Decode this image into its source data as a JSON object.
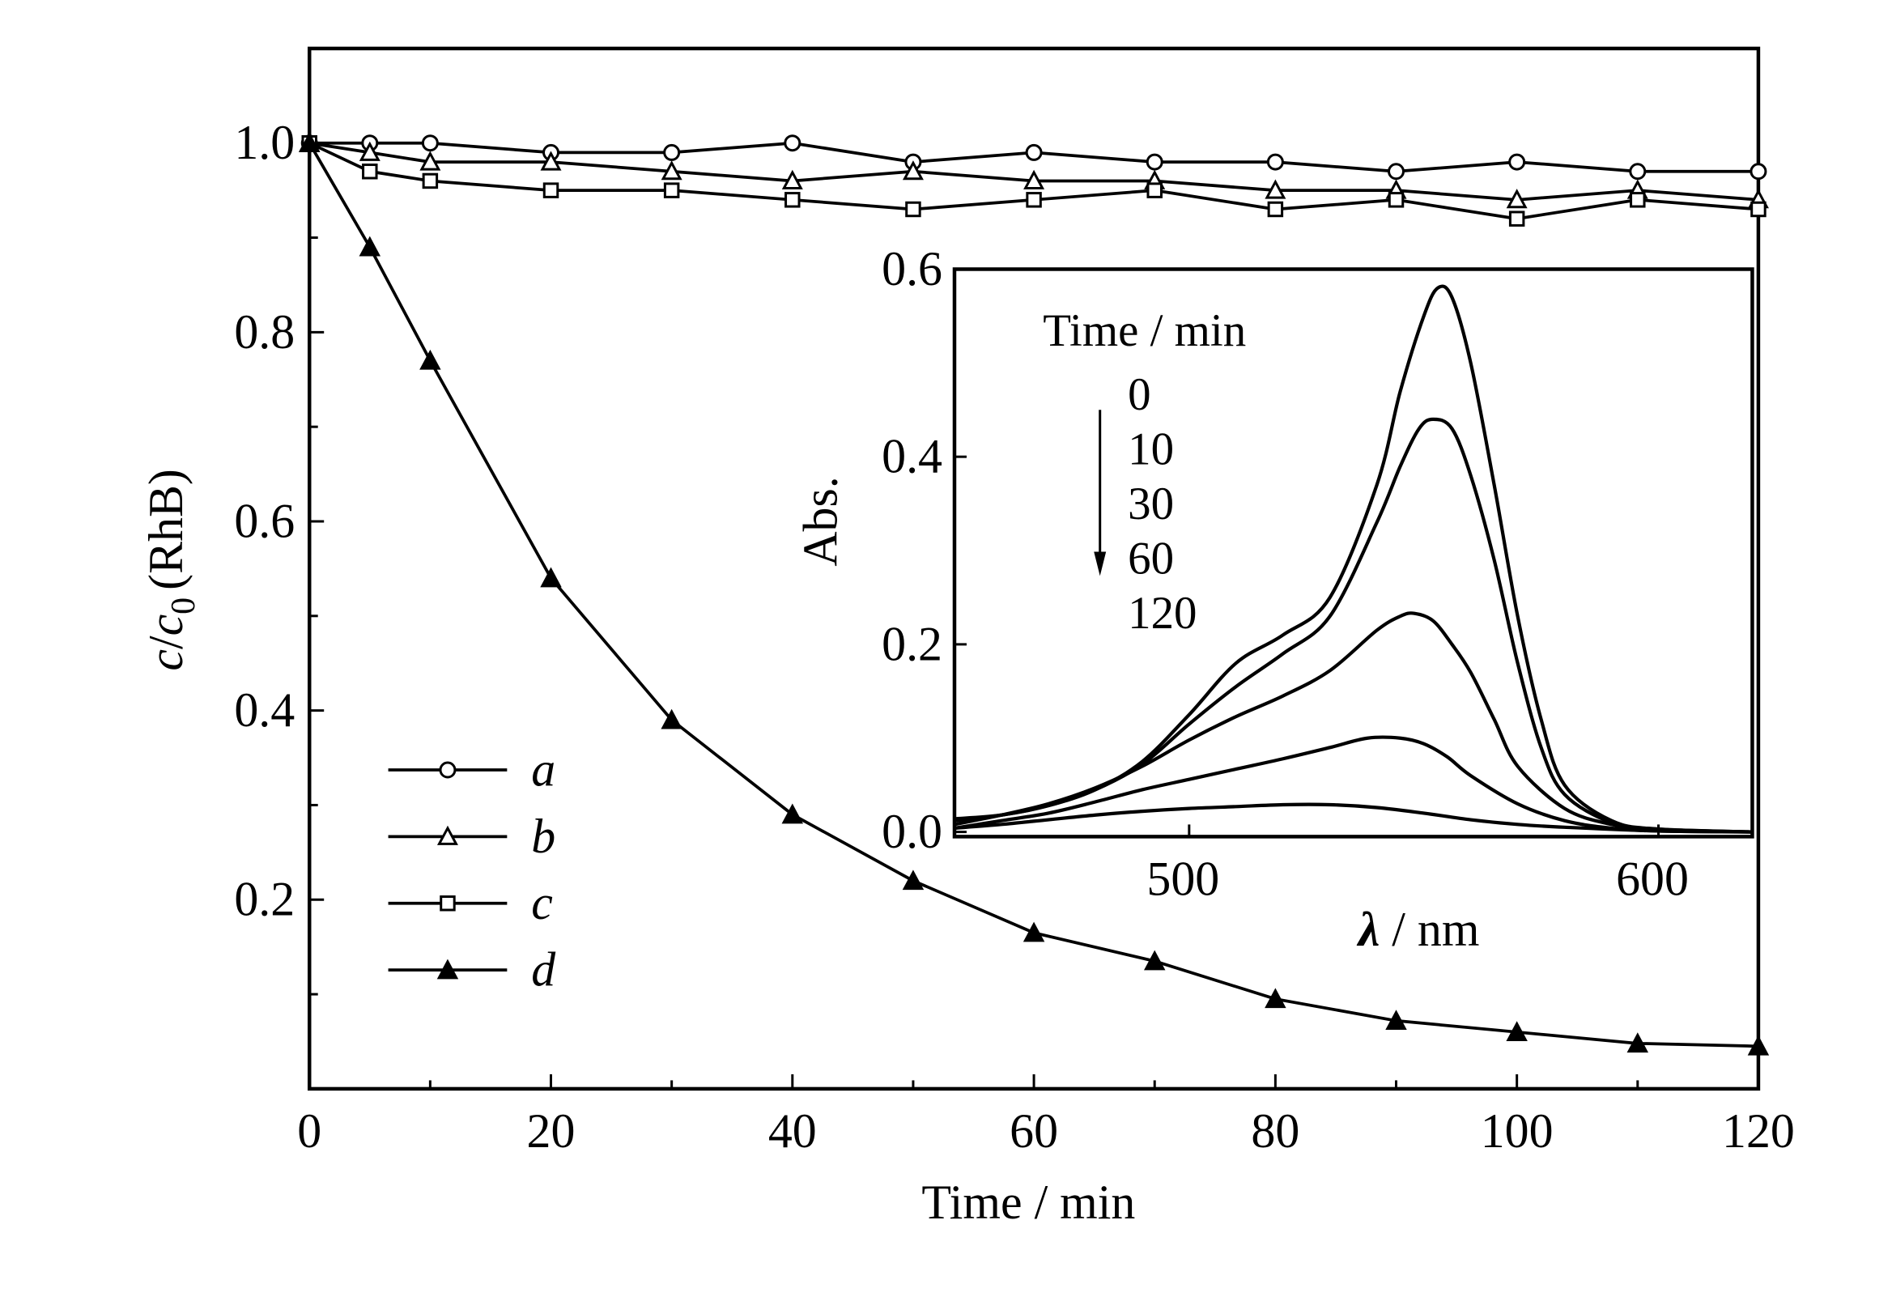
{
  "chart_data": [
    {
      "type": "line",
      "title": "",
      "xlabel": "Time / min",
      "ylabel": {
        "c": "c",
        "slash": "/",
        "c0": "c",
        "sub": "0",
        "rest": "(RhB)"
      },
      "xlim": [
        0,
        120
      ],
      "ylim": [
        0,
        1.1
      ],
      "xticks": [
        "0",
        "20",
        "40",
        "60",
        "80",
        "100",
        "120"
      ],
      "yticks": [
        "0.2",
        "0.4",
        "0.6",
        "0.8",
        "1.0"
      ],
      "grid": false,
      "legend_placement": "bottom-left",
      "x": [
        0,
        5,
        10,
        20,
        30,
        40,
        50,
        60,
        70,
        80,
        90,
        100,
        110,
        120
      ],
      "series": [
        {
          "name": "a",
          "marker": "open-circle",
          "values": [
            1.0,
            1.0,
            1.0,
            0.99,
            0.99,
            1.0,
            0.98,
            0.99,
            0.98,
            0.98,
            0.97,
            0.98,
            0.97,
            0.97
          ]
        },
        {
          "name": "b",
          "marker": "open-triangle",
          "values": [
            1.0,
            0.99,
            0.98,
            0.98,
            0.97,
            0.96,
            0.97,
            0.96,
            0.96,
            0.95,
            0.95,
            0.94,
            0.95,
            0.94
          ]
        },
        {
          "name": "c",
          "marker": "open-square",
          "values": [
            1.0,
            0.97,
            0.96,
            0.95,
            0.95,
            0.94,
            0.93,
            0.94,
            0.95,
            0.93,
            0.94,
            0.92,
            0.94,
            0.93
          ]
        },
        {
          "name": "d",
          "marker": "filled-triangle",
          "values": [
            1.0,
            0.89,
            0.77,
            0.54,
            0.39,
            0.29,
            0.22,
            0.165,
            0.135,
            0.095,
            0.072,
            0.06,
            0.048,
            0.045
          ]
        }
      ]
    },
    {
      "type": "line",
      "title": "",
      "xlabel": {
        "lambda": "λ",
        "rest": " / nm"
      },
      "ylabel": "Abs.",
      "xlim": [
        450,
        620
      ],
      "ylim": [
        -0.005,
        0.6
      ],
      "xticks": [
        "500",
        "600"
      ],
      "yticks": [
        "0.0",
        "0.2",
        "0.4",
        "0.6"
      ],
      "legend_title": "Time / min",
      "legend_labels": [
        "0",
        "10",
        "30",
        "60",
        "120"
      ],
      "legend_placement": "top-left",
      "series": [
        {
          "name": "0",
          "points": [
            [
              450,
              0.012
            ],
            [
              460,
              0.018
            ],
            [
              470,
              0.028
            ],
            [
              480,
              0.045
            ],
            [
              490,
              0.075
            ],
            [
              500,
              0.125
            ],
            [
              510,
              0.18
            ],
            [
              520,
              0.21
            ],
            [
              530,
              0.25
            ],
            [
              540,
              0.37
            ],
            [
              545,
              0.47
            ],
            [
              550,
              0.55
            ],
            [
              553,
              0.58
            ],
            [
              556,
              0.57
            ],
            [
              560,
              0.5
            ],
            [
              565,
              0.37
            ],
            [
              570,
              0.23
            ],
            [
              575,
              0.12
            ],
            [
              580,
              0.05
            ],
            [
              590,
              0.012
            ],
            [
              600,
              0.003
            ],
            [
              620,
              0.0
            ]
          ]
        },
        {
          "name": "10",
          "points": [
            [
              450,
              0.014
            ],
            [
              460,
              0.018
            ],
            [
              470,
              0.028
            ],
            [
              480,
              0.045
            ],
            [
              490,
              0.072
            ],
            [
              500,
              0.115
            ],
            [
              510,
              0.155
            ],
            [
              520,
              0.19
            ],
            [
              530,
              0.23
            ],
            [
              540,
              0.33
            ],
            [
              545,
              0.39
            ],
            [
              549,
              0.43
            ],
            [
              552,
              0.44
            ],
            [
              556,
              0.43
            ],
            [
              560,
              0.38
            ],
            [
              565,
              0.29
            ],
            [
              570,
              0.18
            ],
            [
              575,
              0.09
            ],
            [
              580,
              0.04
            ],
            [
              590,
              0.01
            ],
            [
              600,
              0.003
            ],
            [
              620,
              0.0
            ]
          ]
        },
        {
          "name": "30",
          "points": [
            [
              450,
              0.008
            ],
            [
              460,
              0.018
            ],
            [
              470,
              0.03
            ],
            [
              480,
              0.047
            ],
            [
              490,
              0.07
            ],
            [
              500,
              0.098
            ],
            [
              510,
              0.123
            ],
            [
              520,
              0.145
            ],
            [
              530,
              0.172
            ],
            [
              540,
              0.215
            ],
            [
              545,
              0.23
            ],
            [
              548,
              0.233
            ],
            [
              552,
              0.225
            ],
            [
              556,
              0.2
            ],
            [
              560,
              0.17
            ],
            [
              565,
              0.12
            ],
            [
              570,
              0.07
            ],
            [
              580,
              0.025
            ],
            [
              590,
              0.008
            ],
            [
              600,
              0.002
            ],
            [
              620,
              0.0
            ]
          ]
        },
        {
          "name": "60",
          "points": [
            [
              450,
              0.004
            ],
            [
              460,
              0.012
            ],
            [
              470,
              0.02
            ],
            [
              480,
              0.032
            ],
            [
              490,
              0.045
            ],
            [
              500,
              0.056
            ],
            [
              510,
              0.067
            ],
            [
              520,
              0.078
            ],
            [
              530,
              0.09
            ],
            [
              538,
              0.1
            ],
            [
              545,
              0.1
            ],
            [
              550,
              0.094
            ],
            [
              555,
              0.08
            ],
            [
              560,
              0.06
            ],
            [
              570,
              0.03
            ],
            [
              580,
              0.012
            ],
            [
              590,
              0.004
            ],
            [
              600,
              0.001
            ],
            [
              620,
              0.0
            ]
          ]
        },
        {
          "name": "120",
          "points": [
            [
              450,
              0.004
            ],
            [
              460,
              0.008
            ],
            [
              470,
              0.013
            ],
            [
              480,
              0.018
            ],
            [
              490,
              0.022
            ],
            [
              500,
              0.025
            ],
            [
              510,
              0.027
            ],
            [
              520,
              0.029
            ],
            [
              530,
              0.029
            ],
            [
              540,
              0.026
            ],
            [
              550,
              0.02
            ],
            [
              560,
              0.013
            ],
            [
              570,
              0.008
            ],
            [
              580,
              0.005
            ],
            [
              600,
              0.001
            ],
            [
              620,
              0.0
            ]
          ]
        }
      ]
    }
  ]
}
